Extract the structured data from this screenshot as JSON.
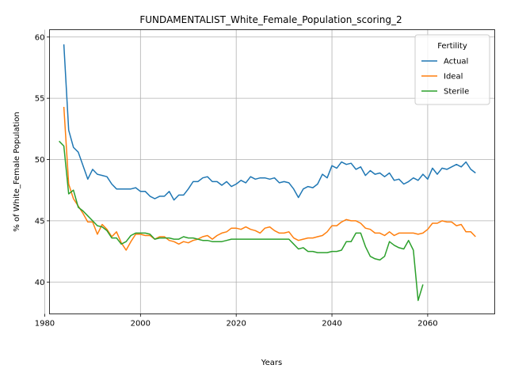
{
  "chart_data": {
    "type": "line",
    "title": "FUNDAMENTALIST_White_Female_Population_scoring_2",
    "xlabel": "Years",
    "ylabel": "% of White_Female Population",
    "xlim": [
      1981,
      2074
    ],
    "ylim": [
      37.4,
      60.6
    ],
    "xticks": [
      1980,
      2000,
      2020,
      2040,
      2060
    ],
    "yticks": [
      40,
      45,
      50,
      55,
      60
    ],
    "grid": true,
    "legend": {
      "title": "Fertility",
      "placement": "top-right"
    },
    "series": [
      {
        "name": "Actual",
        "color": "#1f77b4",
        "x": [
          1984,
          1985,
          1986,
          1987,
          1988,
          1989,
          1990,
          1991,
          1992,
          1993,
          1994,
          1995,
          1996,
          1997,
          1998,
          1999,
          2000,
          2001,
          2002,
          2003,
          2004,
          2005,
          2006,
          2007,
          2008,
          2009,
          2010,
          2011,
          2012,
          2013,
          2014,
          2015,
          2016,
          2017,
          2018,
          2019,
          2020,
          2021,
          2022,
          2023,
          2024,
          2025,
          2026,
          2027,
          2028,
          2029,
          2030,
          2031,
          2032,
          2033,
          2034,
          2035,
          2036,
          2037,
          2038,
          2039,
          2040,
          2041,
          2042,
          2043,
          2044,
          2045,
          2046,
          2047,
          2048,
          2049,
          2050,
          2051,
          2052,
          2053,
          2054,
          2055,
          2056,
          2057,
          2058,
          2059,
          2060,
          2061,
          2062,
          2063,
          2064,
          2065,
          2066,
          2067,
          2068,
          2069,
          2070
        ],
        "values": [
          59.4,
          52.4,
          51.0,
          50.6,
          49.5,
          48.4,
          49.2,
          48.8,
          48.7,
          48.6,
          48.0,
          47.6,
          47.6,
          47.6,
          47.6,
          47.7,
          47.4,
          47.4,
          47.0,
          46.8,
          47.0,
          47.0,
          47.4,
          46.7,
          47.1,
          47.1,
          47.6,
          48.2,
          48.2,
          48.5,
          48.6,
          48.2,
          48.2,
          47.9,
          48.2,
          47.8,
          48.0,
          48.3,
          48.1,
          48.6,
          48.4,
          48.5,
          48.5,
          48.4,
          48.5,
          48.1,
          48.2,
          48.1,
          47.6,
          46.9,
          47.6,
          47.8,
          47.7,
          48.0,
          48.8,
          48.5,
          49.5,
          49.3,
          49.8,
          49.6,
          49.7,
          49.2,
          49.4,
          48.7,
          49.1,
          48.8,
          48.9,
          48.6,
          48.9,
          48.3,
          48.4,
          48.0,
          48.2,
          48.5,
          48.3,
          48.8,
          48.4,
          49.3,
          48.8,
          49.3,
          49.2,
          49.4,
          49.6,
          49.4,
          49.8,
          49.2,
          48.9
        ]
      },
      {
        "name": "Ideal",
        "color": "#ff7f0e",
        "x": [
          1984,
          1985,
          1986,
          1987,
          1988,
          1989,
          1990,
          1991,
          1992,
          1993,
          1994,
          1995,
          1996,
          1997,
          1998,
          1999,
          2000,
          2001,
          2002,
          2003,
          2004,
          2005,
          2006,
          2007,
          2008,
          2009,
          2010,
          2011,
          2012,
          2013,
          2014,
          2015,
          2016,
          2017,
          2018,
          2019,
          2020,
          2021,
          2022,
          2023,
          2024,
          2025,
          2026,
          2027,
          2028,
          2029,
          2030,
          2031,
          2032,
          2033,
          2034,
          2035,
          2036,
          2037,
          2038,
          2039,
          2040,
          2041,
          2042,
          2043,
          2044,
          2045,
          2046,
          2047,
          2048,
          2049,
          2050,
          2051,
          2052,
          2053,
          2054,
          2055,
          2056,
          2057,
          2058,
          2059,
          2060,
          2061,
          2062,
          2063,
          2064,
          2065,
          2066,
          2067,
          2068,
          2069,
          2070
        ],
        "values": [
          54.3,
          48.0,
          46.8,
          46.2,
          45.6,
          44.9,
          44.9,
          43.9,
          44.7,
          44.3,
          43.7,
          44.1,
          43.2,
          42.6,
          43.3,
          43.9,
          43.9,
          43.8,
          43.8,
          43.5,
          43.7,
          43.7,
          43.4,
          43.3,
          43.1,
          43.3,
          43.2,
          43.4,
          43.5,
          43.7,
          43.8,
          43.5,
          43.8,
          44.0,
          44.1,
          44.4,
          44.4,
          44.3,
          44.5,
          44.3,
          44.2,
          44.0,
          44.4,
          44.5,
          44.2,
          44.0,
          44.0,
          44.1,
          43.6,
          43.4,
          43.5,
          43.6,
          43.6,
          43.7,
          43.8,
          44.1,
          44.6,
          44.6,
          44.9,
          45.1,
          45.0,
          45.0,
          44.8,
          44.4,
          44.3,
          44.0,
          44.0,
          43.8,
          44.1,
          43.8,
          44.0,
          44.0,
          44.0,
          44.0,
          43.9,
          44.0,
          44.3,
          44.8,
          44.8,
          45.0,
          44.9,
          44.9,
          44.6,
          44.7,
          44.1,
          44.1,
          43.7
        ]
      },
      {
        "name": "Sterile",
        "color": "#2ca02c",
        "x": [
          1983,
          1984,
          1985,
          1986,
          1987,
          1988,
          1989,
          1990,
          1991,
          1992,
          1993,
          1994,
          1995,
          1996,
          1997,
          1998,
          1999,
          2000,
          2001,
          2002,
          2003,
          2004,
          2005,
          2006,
          2007,
          2008,
          2009,
          2010,
          2011,
          2012,
          2013,
          2014,
          2015,
          2016,
          2017,
          2018,
          2019,
          2020,
          2021,
          2022,
          2023,
          2024,
          2025,
          2026,
          2027,
          2028,
          2029,
          2030,
          2031,
          2032,
          2033,
          2034,
          2035,
          2036,
          2037,
          2038,
          2039,
          2040,
          2041,
          2042,
          2043,
          2044,
          2045,
          2046,
          2047,
          2048,
          2049,
          2050,
          2051,
          2052,
          2053,
          2054,
          2055,
          2056,
          2057,
          2058,
          2059
        ],
        "values": [
          51.5,
          51.1,
          47.2,
          47.5,
          46.1,
          45.8,
          45.4,
          45.0,
          44.6,
          44.5,
          44.2,
          43.6,
          43.6,
          43.1,
          43.3,
          43.8,
          44.0,
          44.0,
          44.0,
          43.9,
          43.5,
          43.6,
          43.6,
          43.6,
          43.5,
          43.5,
          43.7,
          43.6,
          43.6,
          43.5,
          43.4,
          43.4,
          43.3,
          43.3,
          43.3,
          43.4,
          43.5,
          43.5,
          43.5,
          43.5,
          43.5,
          43.5,
          43.5,
          43.5,
          43.5,
          43.5,
          43.5,
          43.5,
          43.5,
          43.1,
          42.7,
          42.8,
          42.5,
          42.5,
          42.4,
          42.4,
          42.4,
          42.5,
          42.5,
          42.6,
          43.3,
          43.3,
          44.0,
          44.0,
          42.9,
          42.1,
          41.9,
          41.8,
          42.1,
          43.3,
          43.0,
          42.8,
          42.7,
          43.4,
          42.6,
          38.5,
          39.8
        ]
      }
    ]
  }
}
